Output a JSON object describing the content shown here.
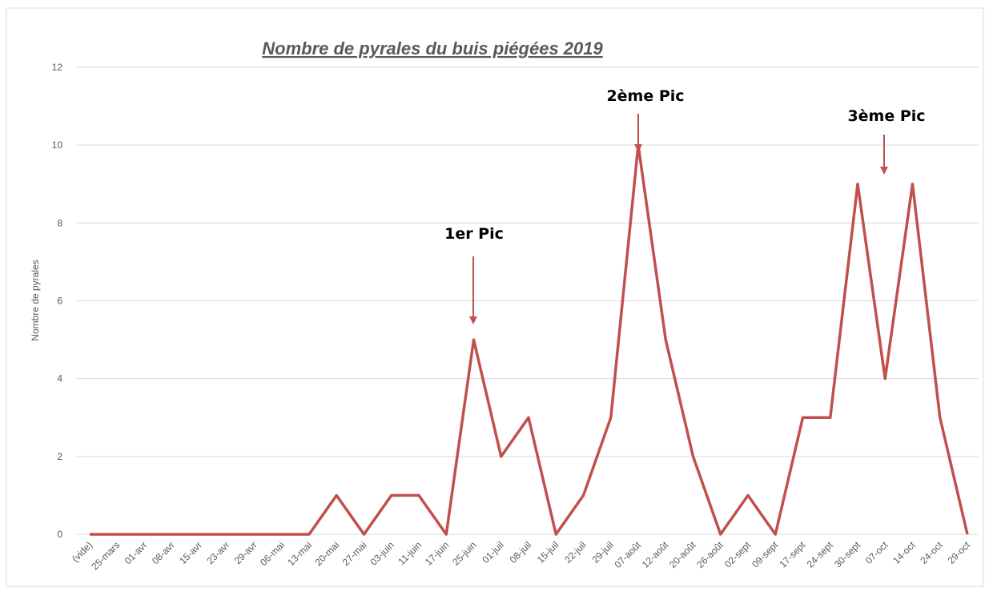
{
  "chart_data": {
    "type": "line",
    "title": "Nombre de pyrales du buis piégées 2019",
    "y_label": "Nombre de pyrales",
    "categories": [
      "(vide)",
      "25-mars",
      "01-avr",
      "08-avr",
      "15-avr",
      "23-avr",
      "29-avr",
      "06-mai",
      "13-mai",
      "20-mai",
      "27-mai",
      "03-juin",
      "11-juin",
      "17-juin",
      "25-juin",
      "01-juil",
      "08-juil",
      "15-juil",
      "22-juil",
      "29-juil",
      "07-août",
      "12-août",
      "20-août",
      "26-août",
      "02-sept",
      "09-sept",
      "17-sept",
      "24-sept",
      "30-sept",
      "07-oct",
      "14-oct",
      "24-oct",
      "29-oct"
    ],
    "series": [
      {
        "name": "Nombre de pyrales",
        "color": "#c0504d",
        "values": [
          0,
          0,
          0,
          0,
          0,
          0,
          0,
          0,
          0,
          1,
          0,
          1,
          1,
          0,
          5,
          2,
          3,
          0,
          1,
          3,
          10,
          5,
          2,
          0,
          1,
          0,
          3,
          3,
          9,
          4,
          9,
          3,
          0
        ]
      }
    ],
    "ylim": [
      0,
      12
    ],
    "yticks": [
      0,
      2,
      4,
      6,
      8,
      10,
      12
    ],
    "grid": true,
    "annotations": [
      "1er Pic",
      "2ème Pic",
      "3ème Pic"
    ]
  }
}
